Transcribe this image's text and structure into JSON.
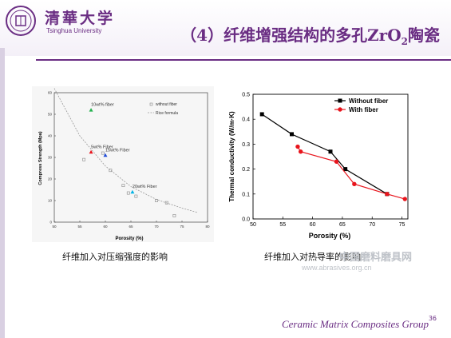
{
  "header": {
    "logo_cn": "清華大学",
    "logo_en": "Tsinghua University",
    "title_main": "（4）纤维增强结构的多孔ZrO",
    "title_sub": "2",
    "title_end": "陶瓷"
  },
  "colors": {
    "accent": "#6a2d83",
    "series_black": "#000000",
    "series_red": "#e8141c"
  },
  "chart_left": {
    "chart_data": {
      "type": "scatter",
      "xlabel": "Porosity (%)",
      "ylabel": "Compress Strength (Mpa)",
      "xlim": [
        50,
        80
      ],
      "ylim": [
        0,
        60
      ],
      "xticks": [
        "50",
        "55",
        "60",
        "65",
        "70",
        "75",
        "80"
      ],
      "yticks": [
        "0",
        "10",
        "20",
        "30",
        "40",
        "50",
        "60"
      ],
      "legend": [
        "without fiber",
        "Rice formula"
      ],
      "series": [
        {
          "name": "without fiber",
          "points": [
            [
              55.8,
              29
            ],
            [
              59.5,
              32
            ],
            [
              61,
              24
            ],
            [
              63.5,
              17
            ],
            [
              64.5,
              13.5
            ],
            [
              66,
              12
            ],
            [
              70,
              10
            ],
            [
              72,
              9
            ],
            [
              73.5,
              3
            ]
          ]
        },
        {
          "name": "Rice formula",
          "points": [
            [
              50,
              62
            ],
            [
              55,
              40
            ],
            [
              60,
              26
            ],
            [
              65,
              16.5
            ],
            [
              70,
              10.5
            ],
            [
              75,
              6.5
            ],
            [
              78,
              4.5
            ]
          ]
        }
      ],
      "fiber_points": [
        {
          "label": "10wt% fiber",
          "x": 57.2,
          "y": 52,
          "color": "#22b14c"
        },
        {
          "label": "5wt% Fiber",
          "x": 57.2,
          "y": 32.5,
          "color": "#e8141c"
        },
        {
          "label": "15wt% Fiber",
          "x": 60,
          "y": 31,
          "color": "#1f4bd8"
        },
        {
          "label": "20wt% Fiber",
          "x": 65.3,
          "y": 14,
          "color": "#00b3e6"
        }
      ]
    },
    "caption": "纤维加入对压缩强度的影响"
  },
  "chart_right": {
    "chart_data": {
      "type": "line",
      "xlabel": "Porosity (%)",
      "ylabel": "Thermal conductivity (W/m·K)",
      "xlim": [
        50,
        76
      ],
      "ylim": [
        0.0,
        0.5
      ],
      "xticks": [
        "50",
        "55",
        "60",
        "65",
        "70",
        "75"
      ],
      "yticks": [
        "0.0",
        "0.1",
        "0.2",
        "0.3",
        "0.4",
        "0.5"
      ],
      "series": [
        {
          "name": "Without fiber",
          "color": "#000000",
          "marker": "square",
          "points": [
            [
              51.5,
              0.42
            ],
            [
              56.5,
              0.34
            ],
            [
              63,
              0.27
            ],
            [
              65.5,
              0.2
            ],
            [
              72.5,
              0.1
            ]
          ]
        },
        {
          "name": "With fiber",
          "color": "#e8141c",
          "marker": "circle",
          "points": [
            [
              57.5,
              0.29
            ],
            [
              58,
              0.27
            ],
            [
              64,
              0.23
            ],
            [
              67,
              0.14
            ],
            [
              72.5,
              0.1
            ],
            [
              75.5,
              0.08
            ]
          ]
        }
      ]
    },
    "caption": "纤维加入对热导率的影响"
  },
  "watermark": {
    "line1": "中国磨料磨具网",
    "line2": "www.abrasives.org.cn"
  },
  "footer": {
    "group": "Ceramic Matrix Composites Group",
    "page": "36"
  }
}
